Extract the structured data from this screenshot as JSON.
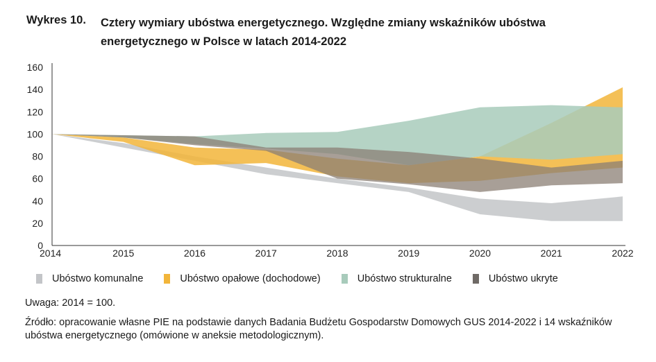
{
  "figure": {
    "label": "Wykres 10.",
    "title": "Cztery wymiary ubóstwa energetycznego. Względne zmiany wskaźników ubóstwa energetycznego w Polsce w latach 2014-2022"
  },
  "chart_data": {
    "type": "area",
    "x": [
      "2014",
      "2015",
      "2016",
      "2017",
      "2018",
      "2019",
      "2020",
      "2021",
      "2022"
    ],
    "ylim": [
      0,
      160
    ],
    "yticks": [
      0,
      20,
      40,
      60,
      80,
      100,
      120,
      140,
      160
    ],
    "series": [
      {
        "name": "Ubóstwo komunalne",
        "color": "#c3c5c8",
        "upper": [
          100,
          92,
          80,
          70,
          60,
          52,
          42,
          38,
          44
        ],
        "lower": [
          100,
          88,
          76,
          64,
          56,
          48,
          28,
          22,
          22
        ]
      },
      {
        "name": "Ubóstwo opałowe (dochodowe)",
        "color": "#f2b53a",
        "upper": [
          100,
          97,
          88,
          86,
          78,
          72,
          80,
          110,
          142
        ],
        "lower": [
          100,
          93,
          72,
          74,
          62,
          56,
          58,
          65,
          70
        ]
      },
      {
        "name": "Ubóstwo strukturalne",
        "color": "#a8cbbb",
        "upper": [
          100,
          99,
          98,
          101,
          102,
          112,
          124,
          126,
          124
        ],
        "lower": [
          100,
          97,
          91,
          87,
          82,
          72,
          80,
          77,
          82
        ]
      },
      {
        "name": "Ubóstwo ukryte",
        "color": "#8b7f74",
        "upper": [
          100,
          99,
          98,
          88,
          88,
          84,
          78,
          70,
          76
        ],
        "lower": [
          100,
          97,
          90,
          85,
          60,
          55,
          48,
          54,
          56
        ]
      }
    ],
    "legend_position": "bottom"
  },
  "note": "Uwaga: 2014 = 100.",
  "source": "Źródło: opracowanie własne PIE na podstawie danych Badania Budżetu Gospodarstw Domowych GUS 2014-2022 i 14 wskaźników ubóstwa energetycznego (omówione w aneksie metodologicznym)."
}
